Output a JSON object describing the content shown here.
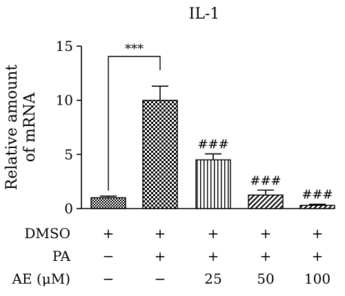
{
  "chart_data": {
    "type": "bar",
    "title": "IL-1",
    "ylabel_lines": [
      "Relative amount",
      "of mRNA"
    ],
    "xlabel": "",
    "ylim": [
      0,
      15
    ],
    "yticks": [
      0,
      5,
      10,
      15
    ],
    "categories": [
      "DMSO/PA−/AE−",
      "DMSO/PA/AE−",
      "DMSO/PA/AE25",
      "DMSO/PA/AE50",
      "DMSO/PA/AE100"
    ],
    "values": [
      1.0,
      10.0,
      4.5,
      1.25,
      0.3
    ],
    "errors": [
      0.15,
      1.3,
      0.55,
      0.45,
      0.1
    ],
    "patterns": [
      "fine-checker",
      "checker",
      "vertical-stripes",
      "diagonal-stripes",
      "diagonal-stripes"
    ],
    "annotations": [
      "",
      "",
      "###",
      "###",
      "###"
    ],
    "significance": {
      "from": 0,
      "to": 1,
      "label": "***"
    },
    "treatment_table": [
      {
        "label": "DMSO",
        "cells": [
          "+",
          "+",
          "+",
          "+",
          "+"
        ]
      },
      {
        "label": "PA",
        "cells": [
          "−",
          "+",
          "+",
          "+",
          "+"
        ]
      },
      {
        "label": "AE (μM)",
        "cells": [
          "−",
          "−",
          "25",
          "50",
          "100"
        ]
      }
    ]
  }
}
